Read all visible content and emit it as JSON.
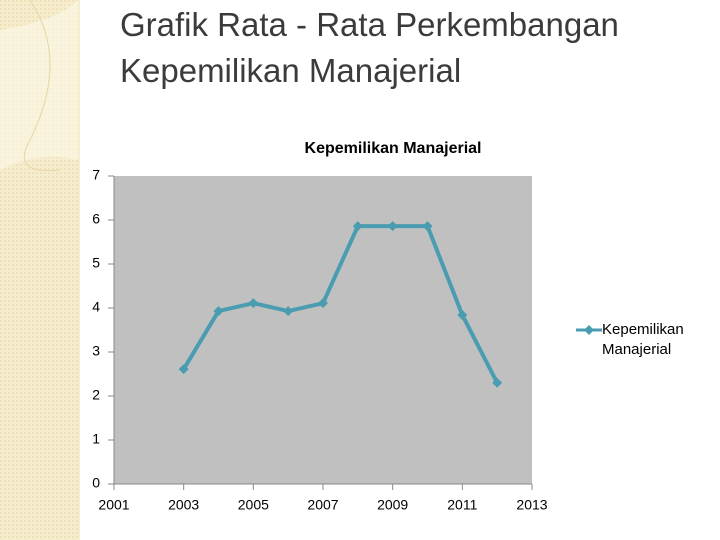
{
  "slide_title": "Grafik Rata - Rata Perkembangan Kepemilikan Manajerial",
  "chart_data": {
    "type": "line",
    "title": "Kepemilikan Manajerial",
    "x": [
      2003,
      2004,
      2005,
      2006,
      2007,
      2008,
      2009,
      2010,
      2011,
      2012
    ],
    "series": [
      {
        "name": "Kepemilikan Manajerial",
        "color": "#4a9db0",
        "values": [
          2.61,
          3.93,
          4.11,
          3.93,
          4.11,
          5.86,
          5.86,
          5.86,
          3.84,
          2.3
        ]
      }
    ],
    "xlim": [
      2001,
      2013
    ],
    "xticks": [
      2001,
      2003,
      2005,
      2007,
      2009,
      2011,
      2013
    ],
    "ylim": [
      0,
      7
    ],
    "yticks": [
      0,
      1,
      2,
      3,
      4,
      5,
      6,
      7
    ],
    "legend": "right",
    "plot_background": "#c0c0c0"
  }
}
